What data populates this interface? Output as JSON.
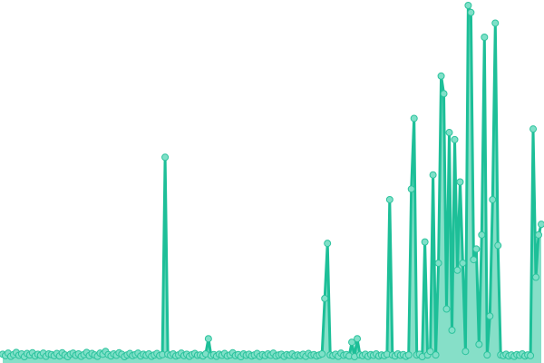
{
  "chart_data": {
    "type": "area",
    "title": "",
    "xlabel": "",
    "ylabel": "",
    "grid": false,
    "axes_visible": false,
    "markers": true,
    "xlim": [
      0,
      199
    ],
    "ylim": [
      0,
      100
    ],
    "colors": {
      "line": "#1dbf98",
      "fill": "#86dfc8",
      "marker_fill": "#7fe0c8",
      "marker_stroke": "#2cc39d"
    },
    "series": [
      {
        "values": [
          1.2,
          0.8,
          1.5,
          0.6,
          1.1,
          1.7,
          0.9,
          1.3,
          0.5,
          1.4,
          1.0,
          1.6,
          0.7,
          1.2,
          0.9,
          1.5,
          0.6,
          1.3,
          1.1,
          0.8,
          1.4,
          0.7,
          1.6,
          1.0,
          0.5,
          1.2,
          1.5,
          0.9,
          1.3,
          0.6,
          1.1,
          1.7,
          0.8,
          1.4,
          1.0,
          0.6,
          1.5,
          1.2,
          2.0,
          1.1,
          0.7,
          1.3,
          0.9,
          1.6,
          1.2,
          0.5,
          1.0,
          1.4,
          0.8,
          1.1,
          1.5,
          0.7,
          1.2,
          0.9,
          1.3,
          0.6,
          1.0,
          1.4,
          0.8,
          1.1,
          57,
          1.2,
          0.9,
          1.3,
          0.7,
          1.0,
          1.5,
          0.8,
          1.2,
          0.6,
          1.1,
          1.4,
          0.9,
          1.0,
          0.7,
          1.3,
          5.6,
          0.8,
          1.1,
          0.6,
          1.2,
          0.9,
          1.4,
          0.7,
          1.0,
          1.6,
          0.8,
          1.1,
          0.5,
          1.3,
          0.9,
          1.2,
          0.7,
          1.0,
          1.4,
          0.6,
          1.1,
          0.8,
          1.3,
          0.9,
          1.5,
          0.7,
          1.0,
          1.2,
          0.6,
          1.1,
          0.9,
          1.3,
          0.7,
          1.0,
          0.8,
          1.2,
          0.6,
          1.4,
          0.9,
          1.1,
          0.7,
          1.0,
          1.3,
          17,
          32.6,
          1.0,
          0.8,
          1.2,
          0.6,
          1.5,
          0.9,
          1.1,
          0.7,
          4.6,
          0.5,
          5.6,
          1.0,
          0.8,
          1.2,
          0.6,
          1.1,
          0.9,
          1.3,
          0.7,
          1.0,
          0.8,
          1.2,
          45,
          1.0,
          0.7,
          1.3,
          0.9,
          1.1,
          0.6,
          1.0,
          48,
          68,
          1.0,
          1.2,
          0.5,
          33,
          1.0,
          2.0,
          52,
          1.0,
          27,
          80,
          75,
          14,
          64,
          8,
          62,
          25,
          50,
          27,
          2,
          100,
          98,
          28,
          31,
          4,
          35,
          91,
          1,
          12,
          45,
          95,
          32,
          1.0,
          0.8,
          1.2,
          0.7,
          1.0,
          0.6,
          1.1,
          0.9,
          1.3,
          0.7,
          1.0,
          0.8,
          65,
          23,
          35,
          38
        ]
      }
    ]
  }
}
